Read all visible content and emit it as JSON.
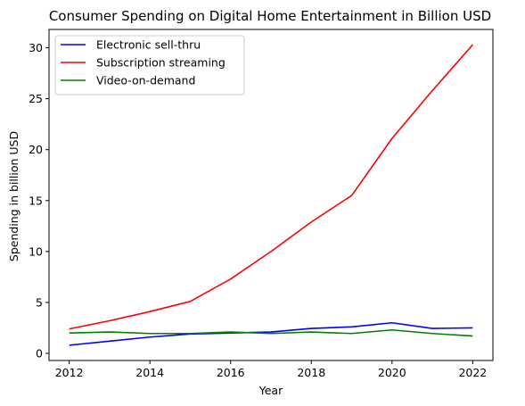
{
  "chart_data": {
    "type": "line",
    "title": "Consumer Spending on Digital Home Entertainment in Billion USD",
    "xlabel": "Year",
    "ylabel": "Spending in billion USD",
    "x": [
      2012,
      2013,
      2014,
      2015,
      2016,
      2017,
      2018,
      2019,
      2020,
      2021,
      2022
    ],
    "xticks": [
      2012,
      2014,
      2016,
      2018,
      2020,
      2022
    ],
    "yticks": [
      0,
      5,
      10,
      15,
      20,
      25,
      30
    ],
    "xlim": [
      2011.5,
      2022.5
    ],
    "ylim": [
      -0.7,
      31.8
    ],
    "grid": false,
    "legend_position": "upper-left",
    "series": [
      {
        "name": "Electronic sell-thru",
        "color": "#0000ff",
        "values": [
          0.8,
          1.2,
          1.6,
          1.9,
          2.0,
          2.1,
          2.45,
          2.6,
          3.0,
          2.45,
          2.5
        ]
      },
      {
        "name": "Subscription streaming",
        "color": "#ff0000",
        "values": [
          2.4,
          3.2,
          4.1,
          5.1,
          7.3,
          10.0,
          12.9,
          15.5,
          21.1,
          25.8,
          30.3
        ]
      },
      {
        "name": "Video-on-demand",
        "color": "#008000",
        "values": [
          2.0,
          2.1,
          1.95,
          1.95,
          2.1,
          1.95,
          2.1,
          1.95,
          2.3,
          1.95,
          1.7
        ]
      }
    ]
  }
}
